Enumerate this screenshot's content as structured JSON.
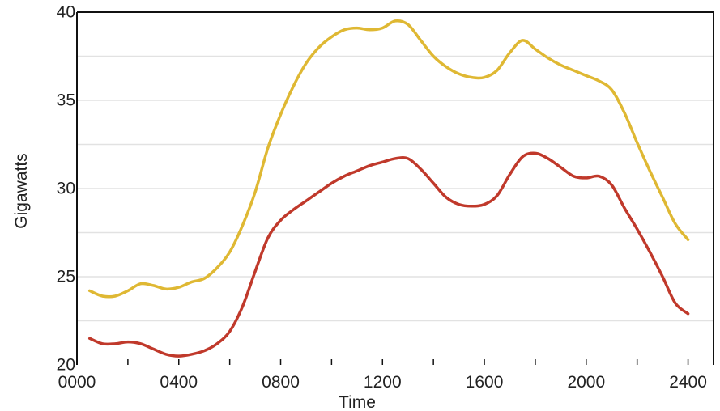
{
  "chart_data": {
    "type": "line",
    "title": "",
    "xlabel": "Time",
    "ylabel": "Gigawatts",
    "xlim": [
      0,
      2500
    ],
    "ylim": [
      20,
      40
    ],
    "x_ticks": [
      0,
      400,
      800,
      1200,
      1600,
      2000,
      2400
    ],
    "x_tick_labels": [
      "0000",
      "0400",
      "0800",
      "1200",
      "1600",
      "2000",
      "2400"
    ],
    "y_ticks": [
      20,
      25,
      30,
      35,
      40
    ],
    "y_tick_labels": [
      "20",
      "25",
      "30",
      "35",
      "40"
    ],
    "grid": "horizontal",
    "legend": "none",
    "series": [
      {
        "color": "#dfb833",
        "x": [
          50,
          100,
          150,
          200,
          250,
          300,
          350,
          400,
          450,
          500,
          550,
          600,
          650,
          700,
          750,
          800,
          850,
          900,
          950,
          1000,
          1050,
          1100,
          1150,
          1200,
          1250,
          1300,
          1350,
          1400,
          1450,
          1500,
          1550,
          1600,
          1650,
          1700,
          1750,
          1800,
          1850,
          1900,
          1950,
          2000,
          2050,
          2100,
          2150,
          2200,
          2250,
          2300,
          2350,
          2400
        ],
        "y": [
          24.2,
          23.9,
          23.9,
          24.2,
          24.6,
          24.5,
          24.3,
          24.4,
          24.7,
          24.9,
          25.5,
          26.4,
          27.9,
          29.8,
          32.3,
          34.2,
          35.8,
          37.1,
          38.0,
          38.6,
          39.0,
          39.1,
          39.0,
          39.1,
          39.5,
          39.3,
          38.4,
          37.5,
          36.9,
          36.5,
          36.3,
          36.3,
          36.7,
          37.7,
          38.4,
          37.9,
          37.4,
          37.0,
          36.7,
          36.4,
          36.1,
          35.6,
          34.3,
          32.6,
          31.0,
          29.5,
          28.0,
          27.1
        ]
      },
      {
        "color": "#c0392b",
        "x": [
          50,
          100,
          150,
          200,
          250,
          300,
          350,
          400,
          450,
          500,
          550,
          600,
          650,
          700,
          750,
          800,
          850,
          900,
          950,
          1000,
          1050,
          1100,
          1150,
          1200,
          1250,
          1300,
          1350,
          1400,
          1450,
          1500,
          1550,
          1600,
          1650,
          1700,
          1750,
          1800,
          1850,
          1900,
          1950,
          2000,
          2050,
          2100,
          2150,
          2200,
          2250,
          2300,
          2350,
          2400
        ],
        "y": [
          21.5,
          21.2,
          21.2,
          21.3,
          21.2,
          20.9,
          20.6,
          20.5,
          20.6,
          20.8,
          21.2,
          21.9,
          23.3,
          25.3,
          27.2,
          28.2,
          28.8,
          29.3,
          29.8,
          30.3,
          30.7,
          31.0,
          31.3,
          31.5,
          31.7,
          31.7,
          31.1,
          30.3,
          29.5,
          29.1,
          29.0,
          29.1,
          29.6,
          30.8,
          31.8,
          32.0,
          31.7,
          31.2,
          30.7,
          30.6,
          30.7,
          30.2,
          28.9,
          27.7,
          26.4,
          25.0,
          23.5,
          22.9
        ]
      }
    ]
  }
}
